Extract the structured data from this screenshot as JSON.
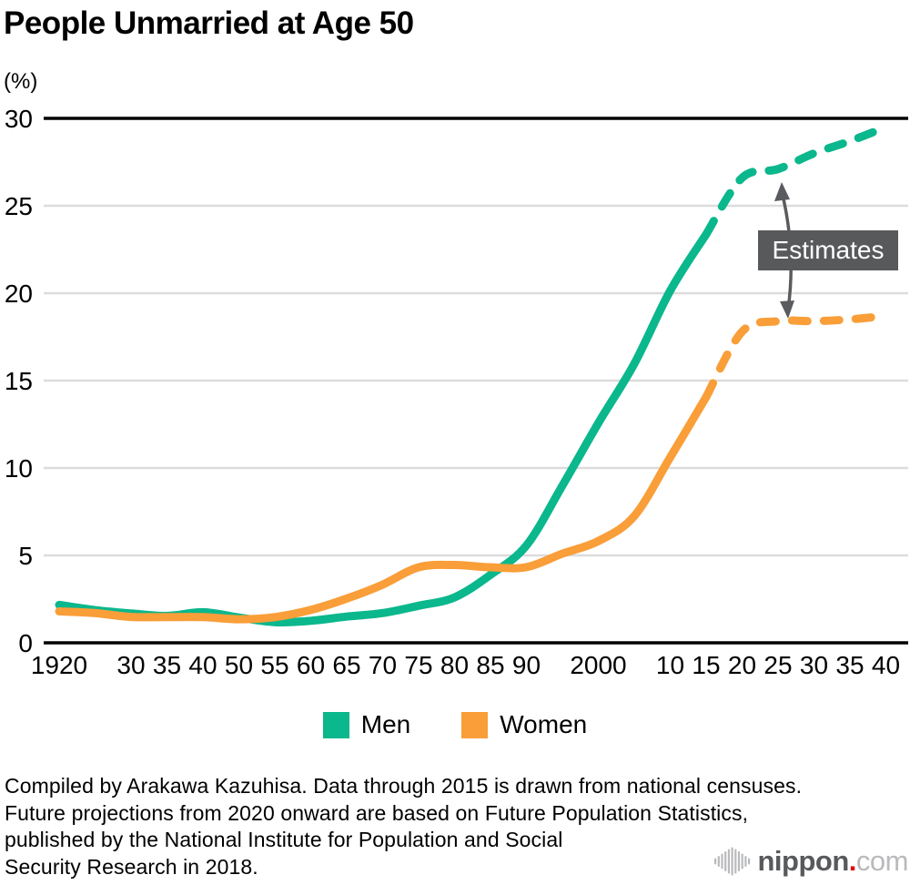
{
  "title": "People Unmarried at Age 50",
  "y_axis": {
    "unit": "(%)"
  },
  "chart_data": {
    "type": "line",
    "title": "People Unmarried at Age 50",
    "xlabel": "",
    "ylabel": "(%)",
    "ylim": [
      0,
      30
    ],
    "y_ticks": [
      0,
      5,
      10,
      15,
      20,
      25,
      30
    ],
    "grid": "horizontal-only",
    "legend_position": "bottom-center",
    "categories": [
      1920,
      1925,
      1930,
      1935,
      1940,
      1950,
      1955,
      1960,
      1965,
      1970,
      1975,
      1980,
      1985,
      1990,
      1995,
      2000,
      2005,
      2010,
      2015,
      2020,
      2025,
      2030,
      2035,
      2040
    ],
    "x_tick_labels": [
      "1920",
      "",
      "30",
      "35",
      "40",
      "50",
      "55",
      "60",
      "65",
      "70",
      "75",
      "80",
      "85",
      "90",
      "",
      "2000",
      "",
      "10",
      "15",
      "20",
      "25",
      "30",
      "35",
      "40"
    ],
    "dashed_estimates_from_year": 2015,
    "series": [
      {
        "name": "Men",
        "color": "#0bb78c",
        "values": [
          2.17,
          1.87,
          1.68,
          1.54,
          1.75,
          1.45,
          1.18,
          1.26,
          1.5,
          1.7,
          2.12,
          2.6,
          3.89,
          5.57,
          8.99,
          12.57,
          15.96,
          20.14,
          23.37,
          26.6,
          27.1,
          28.0,
          28.7,
          29.5
        ]
      },
      {
        "name": "Women",
        "color": "#f99e38",
        "values": [
          1.8,
          1.7,
          1.48,
          1.47,
          1.47,
          1.35,
          1.47,
          1.88,
          2.53,
          3.33,
          4.32,
          4.45,
          4.32,
          4.33,
          5.1,
          5.82,
          7.25,
          10.61,
          14.06,
          17.8,
          18.4,
          18.4,
          18.5,
          18.7
        ]
      }
    ],
    "annotation": {
      "label": "Estimates",
      "box_color": "#58595b",
      "arrow_color": "#5a5b5e"
    }
  },
  "caption": {
    "lines": [
      "Compiled by Arakawa Kazuhisa. Data through 2015 is drawn from national censuses.",
      "Future projections from 2020 onward are based on Future Population Statistics,",
      "published by the National Institute for Population and Social",
      "Security Research in 2018."
    ]
  },
  "logo": {
    "brand": "nippon",
    "dot": ".",
    "tld": "com",
    "dot_color": "#e60012",
    "gray": "#b9babc"
  }
}
